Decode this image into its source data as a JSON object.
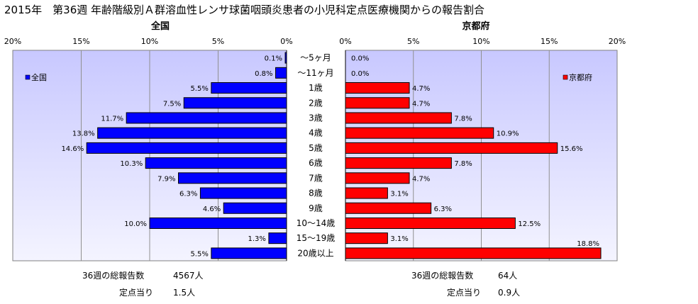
{
  "title": "2015年　第36週 年齢階級別Ａ群溶血性レンサ球菌咽頭炎患者の小児科定点医療機関からの報告割合",
  "chart_data": [
    {
      "type": "bar",
      "orientation": "horizontal",
      "direction": "leftward",
      "title": "全国",
      "legend": "全国",
      "legend_placement": "top-left",
      "xlim": [
        0,
        20
      ],
      "xticks": [
        "20%",
        "15%",
        "10%",
        "5%",
        "0%"
      ],
      "grid": true,
      "bar_color": "#0000ff",
      "categories": [
        "～5ヶ月",
        "～11ヶ月",
        "1歳",
        "2歳",
        "3歳",
        "4歳",
        "5歳",
        "6歳",
        "7歳",
        "8歳",
        "9歳",
        "10～14歳",
        "15～19歳",
        "20歳以上"
      ],
      "values": [
        0.1,
        0.8,
        5.5,
        7.5,
        11.7,
        13.8,
        14.6,
        10.3,
        7.9,
        6.3,
        4.6,
        10.0,
        1.3,
        5.5
      ],
      "value_labels": [
        "0.1%",
        "0.8%",
        "5.5%",
        "7.5%",
        "11.7%",
        "13.8%",
        "14.6%",
        "10.3%",
        "7.9%",
        "6.3%",
        "4.6%",
        "10.0%",
        "1.3%",
        "5.5%"
      ]
    },
    {
      "type": "bar",
      "orientation": "horizontal",
      "direction": "rightward",
      "title": "京都府",
      "legend": "京都府",
      "legend_placement": "top-right",
      "xlim": [
        0,
        20
      ],
      "xticks": [
        "0%",
        "5%",
        "10%",
        "15%",
        "20%"
      ],
      "grid": true,
      "bar_color": "#ff0000",
      "categories": [
        "～5ヶ月",
        "～11ヶ月",
        "1歳",
        "2歳",
        "3歳",
        "4歳",
        "5歳",
        "6歳",
        "7歳",
        "8歳",
        "9歳",
        "10～14歳",
        "15～19歳",
        "20歳以上"
      ],
      "values": [
        0.0,
        0.0,
        4.7,
        4.7,
        7.8,
        10.9,
        15.6,
        7.8,
        4.7,
        3.1,
        6.3,
        12.5,
        3.1,
        18.8
      ],
      "value_labels": [
        "0.0%",
        "0.0%",
        "4.7%",
        "4.7%",
        "7.8%",
        "10.9%",
        "15.6%",
        "7.8%",
        "4.7%",
        "3.1%",
        "6.3%",
        "12.5%",
        "3.1%",
        "18.8%"
      ]
    }
  ],
  "footer": {
    "national": {
      "total_label": "36週の総報告数",
      "total_value": "4567人",
      "per_site_label": "定点当り",
      "per_site_value": "1.5人"
    },
    "kyoto": {
      "total_label": "36週の総報告数",
      "total_value": "64人",
      "per_site_label": "定点当り",
      "per_site_value": "0.9人"
    }
  },
  "colors": {
    "national_bar": "#0000ff",
    "kyoto_bar": "#ff0000",
    "plot_top": "#c8c8ff",
    "plot_bottom": "#ffffff"
  }
}
